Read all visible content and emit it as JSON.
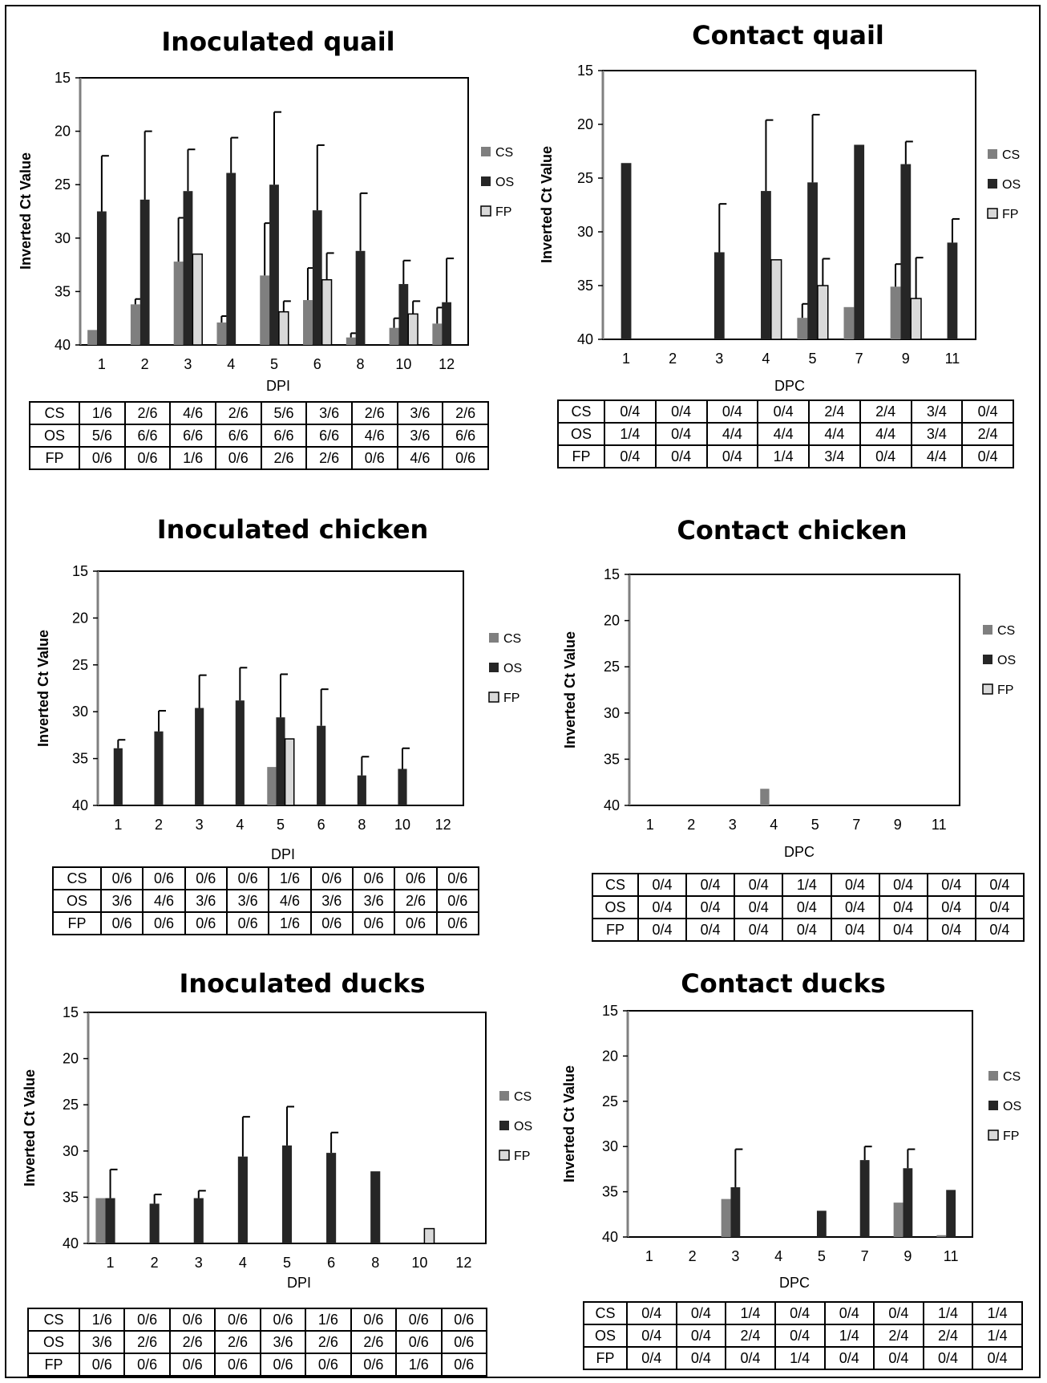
{
  "colors": {
    "CS": "#7f7f7f",
    "OS": "#262626",
    "FP": "#d9d9d9",
    "axis_left": "#808080",
    "frame": "#000000"
  },
  "legend_labels": [
    "CS",
    "OS",
    "FP"
  ],
  "chart_data": [
    {
      "type": "bar",
      "title": "Inoculated quail",
      "xlabel": "DPI",
      "ylabel": "Inverted Ct Value",
      "ylim": [
        40,
        15
      ],
      "y_ticks": [
        15,
        20,
        25,
        30,
        35,
        40
      ],
      "categories": [
        "1",
        "2",
        "3",
        "4",
        "5",
        "6",
        "8",
        "10",
        "12"
      ],
      "series": [
        {
          "name": "CS",
          "values": [
            38.6,
            36.2,
            32.2,
            37.9,
            33.5,
            35.8,
            39.3,
            38.4,
            38.0
          ],
          "errors": [
            0,
            0.5,
            4.1,
            0.6,
            4.9,
            3.0,
            0.4,
            0.9,
            1.5
          ]
        },
        {
          "name": "OS",
          "values": [
            27.5,
            26.4,
            25.6,
            23.9,
            25.0,
            27.4,
            31.2,
            34.3,
            36.0
          ],
          "errors": [
            5.2,
            6.4,
            3.9,
            3.3,
            6.8,
            6.1,
            5.4,
            2.2,
            4.1
          ]
        },
        {
          "name": "FP",
          "values": [
            null,
            null,
            31.5,
            null,
            36.9,
            33.9,
            null,
            37.1,
            null
          ],
          "errors": [
            0,
            0,
            0,
            0,
            1.0,
            2.5,
            0,
            1.2,
            0
          ]
        }
      ],
      "table": {
        "columns": [
          "1",
          "2",
          "3",
          "4",
          "5",
          "6",
          "8",
          "10",
          "12"
        ],
        "rows": [
          {
            "label": "CS",
            "cells": [
              "1/6",
              "2/6",
              "4/6",
              "2/6",
              "5/6",
              "3/6",
              "2/6",
              "3/6",
              "2/6"
            ]
          },
          {
            "label": "OS",
            "cells": [
              "5/6",
              "6/6",
              "6/6",
              "6/6",
              "6/6",
              "6/6",
              "4/6",
              "3/6",
              "6/6"
            ]
          },
          {
            "label": "FP",
            "cells": [
              "0/6",
              "0/6",
              "1/6",
              "0/6",
              "2/6",
              "2/6",
              "0/6",
              "4/6",
              "0/6"
            ]
          }
        ]
      }
    },
    {
      "type": "bar",
      "title": "Contact quail",
      "xlabel": "DPC",
      "ylabel": "Inverted Ct Value",
      "ylim": [
        40,
        15
      ],
      "y_ticks": [
        15,
        20,
        25,
        30,
        35,
        40
      ],
      "categories": [
        "1",
        "2",
        "3",
        "4",
        "5",
        "7",
        "9",
        "11"
      ],
      "series": [
        {
          "name": "CS",
          "values": [
            null,
            null,
            null,
            null,
            38.0,
            37.0,
            35.1,
            null
          ],
          "errors": [
            0,
            0,
            0,
            0,
            1.3,
            0,
            2.1,
            0
          ]
        },
        {
          "name": "OS",
          "values": [
            23.6,
            null,
            31.9,
            26.2,
            25.4,
            21.9,
            23.7,
            31.0
          ],
          "errors": [
            0,
            0,
            4.5,
            6.6,
            6.3,
            0,
            2.1,
            2.2
          ]
        },
        {
          "name": "FP",
          "values": [
            null,
            null,
            null,
            32.6,
            35.0,
            null,
            36.2,
            null
          ],
          "errors": [
            0,
            0,
            0,
            0,
            2.5,
            0,
            3.8,
            0
          ]
        }
      ],
      "table": {
        "columns": [
          "1",
          "2",
          "3",
          "4",
          "5",
          "7",
          "9",
          "11"
        ],
        "rows": [
          {
            "label": "CS",
            "cells": [
              "0/4",
              "0/4",
              "0/4",
              "0/4",
              "2/4",
              "2/4",
              "3/4",
              "0/4"
            ]
          },
          {
            "label": "OS",
            "cells": [
              "1/4",
              "0/4",
              "4/4",
              "4/4",
              "4/4",
              "4/4",
              "3/4",
              "2/4"
            ]
          },
          {
            "label": "FP",
            "cells": [
              "0/4",
              "0/4",
              "0/4",
              "1/4",
              "3/4",
              "0/4",
              "4/4",
              "0/4"
            ]
          }
        ]
      }
    },
    {
      "type": "bar",
      "title": "Inoculated chicken",
      "xlabel": "DPI",
      "ylabel": "Inverted Ct Value",
      "ylim": [
        40,
        15
      ],
      "y_ticks": [
        15,
        20,
        25,
        30,
        35,
        40
      ],
      "categories": [
        "1",
        "2",
        "3",
        "4",
        "5",
        "6",
        "8",
        "10",
        "12"
      ],
      "series": [
        {
          "name": "CS",
          "values": [
            null,
            null,
            null,
            null,
            35.9,
            null,
            null,
            null,
            null
          ],
          "errors": [
            0,
            0,
            0,
            0,
            0,
            0,
            0,
            0,
            0
          ]
        },
        {
          "name": "OS",
          "values": [
            33.9,
            32.1,
            29.6,
            28.8,
            30.6,
            31.5,
            36.8,
            36.1,
            null
          ],
          "errors": [
            0.9,
            2.2,
            3.5,
            3.5,
            4.6,
            3.9,
            2.0,
            2.2,
            0
          ]
        },
        {
          "name": "FP",
          "values": [
            null,
            null,
            null,
            null,
            32.9,
            null,
            null,
            null,
            null
          ],
          "errors": [
            0,
            0,
            0,
            0,
            0,
            0,
            0,
            0,
            0
          ]
        }
      ],
      "table": {
        "columns": [
          "1",
          "2",
          "3",
          "4",
          "5",
          "6",
          "8",
          "10",
          "12"
        ],
        "rows": [
          {
            "label": "CS",
            "cells": [
              "0/6",
              "0/6",
              "0/6",
              "0/6",
              "1/6",
              "0/6",
              "0/6",
              "0/6",
              "0/6"
            ]
          },
          {
            "label": "OS",
            "cells": [
              "3/6",
              "4/6",
              "3/6",
              "3/6",
              "4/6",
              "3/6",
              "3/6",
              "2/6",
              "0/6"
            ]
          },
          {
            "label": "FP",
            "cells": [
              "0/6",
              "0/6",
              "0/6",
              "0/6",
              "1/6",
              "0/6",
              "0/6",
              "0/6",
              "0/6"
            ]
          }
        ]
      }
    },
    {
      "type": "bar",
      "title": "Contact chicken",
      "xlabel": "DPC",
      "ylabel": "Inverted Ct Value",
      "ylim": [
        40,
        15
      ],
      "y_ticks": [
        15,
        20,
        25,
        30,
        35,
        40
      ],
      "categories": [
        "1",
        "2",
        "3",
        "4",
        "5",
        "7",
        "9",
        "11"
      ],
      "series": [
        {
          "name": "CS",
          "values": [
            null,
            null,
            null,
            38.2,
            null,
            null,
            null,
            null
          ],
          "errors": [
            0,
            0,
            0,
            0,
            0,
            0,
            0,
            0
          ]
        },
        {
          "name": "OS",
          "values": [
            null,
            null,
            null,
            null,
            null,
            null,
            null,
            null
          ],
          "errors": [
            0,
            0,
            0,
            0,
            0,
            0,
            0,
            0
          ]
        },
        {
          "name": "FP",
          "values": [
            null,
            null,
            null,
            null,
            null,
            null,
            null,
            null
          ],
          "errors": [
            0,
            0,
            0,
            0,
            0,
            0,
            0,
            0
          ]
        }
      ],
      "table": {
        "columns": [
          "1",
          "2",
          "3",
          "4",
          "5",
          "7",
          "9",
          "11"
        ],
        "rows": [
          {
            "label": "CS",
            "cells": [
              "0/4",
              "0/4",
              "0/4",
              "1/4",
              "0/4",
              "0/4",
              "0/4",
              "0/4"
            ]
          },
          {
            "label": "OS",
            "cells": [
              "0/4",
              "0/4",
              "0/4",
              "0/4",
              "0/4",
              "0/4",
              "0/4",
              "0/4"
            ]
          },
          {
            "label": "FP",
            "cells": [
              "0/4",
              "0/4",
              "0/4",
              "0/4",
              "0/4",
              "0/4",
              "0/4",
              "0/4"
            ]
          }
        ]
      }
    },
    {
      "type": "bar",
      "title": "Inoculated ducks",
      "xlabel": "DPI",
      "ylabel": "Inverted Ct Value",
      "ylim": [
        40,
        15
      ],
      "y_ticks": [
        15,
        20,
        25,
        30,
        35,
        40
      ],
      "categories": [
        "1",
        "2",
        "3",
        "4",
        "5",
        "6",
        "8",
        "10",
        "12"
      ],
      "series": [
        {
          "name": "CS",
          "values": [
            35.1,
            null,
            null,
            null,
            null,
            null,
            null,
            null,
            null
          ],
          "errors": [
            0,
            0,
            0,
            0,
            0,
            0,
            0,
            0,
            0
          ]
        },
        {
          "name": "OS",
          "values": [
            35.1,
            35.7,
            35.1,
            30.6,
            29.4,
            30.2,
            32.2,
            null,
            null
          ],
          "errors": [
            3.1,
            1.0,
            0.8,
            4.3,
            4.2,
            2.2,
            0,
            0,
            0
          ]
        },
        {
          "name": "FP",
          "values": [
            null,
            null,
            null,
            null,
            null,
            null,
            null,
            38.4,
            null
          ],
          "errors": [
            0,
            0,
            0,
            0,
            0,
            0,
            0,
            0,
            0
          ]
        }
      ],
      "table": {
        "columns": [
          "1",
          "2",
          "3",
          "4",
          "5",
          "6",
          "8",
          "10",
          "12"
        ],
        "rows": [
          {
            "label": "CS",
            "cells": [
              "1/6",
              "0/6",
              "0/6",
              "0/6",
              "0/6",
              "1/6",
              "0/6",
              "0/6",
              "0/6"
            ]
          },
          {
            "label": "OS",
            "cells": [
              "3/6",
              "2/6",
              "2/6",
              "2/6",
              "3/6",
              "2/6",
              "2/6",
              "0/6",
              "0/6"
            ]
          },
          {
            "label": "FP",
            "cells": [
              "0/6",
              "0/6",
              "0/6",
              "0/6",
              "0/6",
              "0/6",
              "0/6",
              "1/6",
              "0/6"
            ]
          }
        ]
      }
    },
    {
      "type": "bar",
      "title": "Contact ducks",
      "xlabel": "DPC",
      "ylabel": "Inverted Ct Value",
      "ylim": [
        40,
        15
      ],
      "y_ticks": [
        15,
        20,
        25,
        30,
        35,
        40
      ],
      "categories": [
        "1",
        "2",
        "3",
        "4",
        "5",
        "7",
        "9",
        "11"
      ],
      "series": [
        {
          "name": "CS",
          "values": [
            null,
            null,
            35.8,
            null,
            null,
            null,
            36.2,
            39.8
          ],
          "errors": [
            0,
            0,
            0,
            0,
            0,
            0,
            0,
            0
          ]
        },
        {
          "name": "OS",
          "values": [
            null,
            null,
            34.5,
            null,
            37.1,
            31.5,
            32.4,
            34.8
          ],
          "errors": [
            0,
            0,
            4.2,
            0,
            0,
            1.5,
            2.1,
            0
          ]
        },
        {
          "name": "FP",
          "values": [
            null,
            null,
            null,
            null,
            null,
            null,
            null,
            null
          ],
          "errors": [
            0,
            0,
            0,
            0,
            0,
            0,
            0,
            0
          ]
        }
      ],
      "table": {
        "columns": [
          "1",
          "2",
          "3",
          "4",
          "5",
          "7",
          "9",
          "11"
        ],
        "rows": [
          {
            "label": "CS",
            "cells": [
              "0/4",
              "0/4",
              "1/4",
              "0/4",
              "0/4",
              "0/4",
              "1/4",
              "1/4"
            ]
          },
          {
            "label": "OS",
            "cells": [
              "0/4",
              "0/4",
              "2/4",
              "0/4",
              "1/4",
              "2/4",
              "2/4",
              "1/4"
            ]
          },
          {
            "label": "FP",
            "cells": [
              "0/4",
              "0/4",
              "0/4",
              "1/4",
              "0/4",
              "0/4",
              "0/4",
              "0/4"
            ]
          }
        ]
      }
    }
  ]
}
